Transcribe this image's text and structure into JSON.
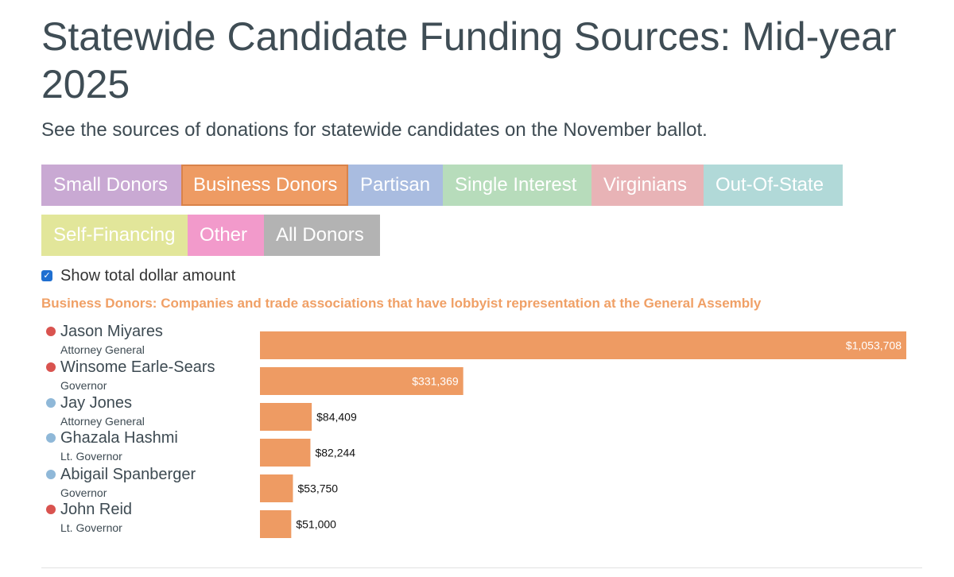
{
  "header": {
    "title": "Statewide Candidate Funding Sources: Mid-year 2025",
    "subtitle": "See the sources of donations for statewide candidates on the November ballot."
  },
  "filters": [
    {
      "label": "Small Donors",
      "color": "#c9a9d3"
    },
    {
      "label": "Business Donors",
      "color": "#ee9b63",
      "active": true
    },
    {
      "label": "Partisan",
      "color": "#a9bce0"
    },
    {
      "label": "Single Interest",
      "color": "#b7dcbb"
    },
    {
      "label": "Virginians",
      "color": "#e8b3b6"
    },
    {
      "label": "Out-Of-State",
      "color": "#b1d9d8"
    },
    {
      "label": "Self-Financing",
      "color": "#e2e69a"
    },
    {
      "label": "Other",
      "color": "#f29acb"
    },
    {
      "label": "All Donors",
      "color": "#b3b3b3"
    }
  ],
  "checkbox": {
    "label": "Show total dollar amount",
    "checked": true
  },
  "description": "Business Donors: Companies and trade associations that have lobbyist representation at the General Assembly",
  "colors": {
    "bar": "#ee9b63",
    "republican": "#d9534f",
    "democrat": "#8fb8d8"
  },
  "chart_data": {
    "type": "bar",
    "orientation": "horizontal",
    "categories": [
      "Jason Miyares",
      "Winsome Earle-Sears",
      "Jay Jones",
      "Ghazala Hashmi",
      "Abigail Spanberger",
      "John Reid"
    ],
    "offices": [
      "Attorney General",
      "Governor",
      "Attorney General",
      "Lt. Governor",
      "Governor",
      "Lt. Governor"
    ],
    "parties": [
      "republican",
      "republican",
      "democrat",
      "democrat",
      "democrat",
      "republican"
    ],
    "values": [
      1053708,
      331369,
      84409,
      82244,
      53750,
      51000
    ],
    "value_labels": [
      "$1,053,708",
      "$331,369",
      "$84,409",
      "$82,244",
      "$53,750",
      "$51,000"
    ],
    "series": [
      {
        "values": [
          1053708,
          331369,
          84409,
          82244,
          53750,
          51000
        ]
      }
    ],
    "xlim": [
      0,
      1053708
    ]
  }
}
